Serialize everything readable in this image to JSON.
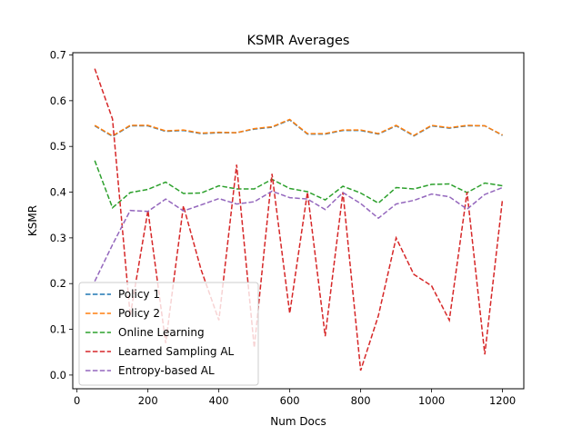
{
  "chart_data": {
    "type": "line",
    "title": "KSMR Averages",
    "xlabel": "Num Docs",
    "ylabel": "KSMR",
    "xlim": [
      -12,
      1260
    ],
    "ylim": [
      -0.03,
      0.705
    ],
    "xticks": [
      0,
      200,
      400,
      600,
      800,
      1000,
      1200
    ],
    "yticks": [
      0.0,
      0.1,
      0.2,
      0.3,
      0.4,
      0.5,
      0.6,
      0.7
    ],
    "grid": false,
    "legend_position": "lower-left",
    "x": [
      50,
      100,
      150,
      200,
      250,
      300,
      350,
      400,
      450,
      500,
      550,
      600,
      650,
      700,
      750,
      800,
      850,
      900,
      950,
      1000,
      1050,
      1100,
      1150,
      1200
    ],
    "series": [
      {
        "name": "Policy 1",
        "color": "#1f77b4",
        "values": [
          0.545,
          0.522,
          0.545,
          0.545,
          0.533,
          0.535,
          0.528,
          0.53,
          0.53,
          0.538,
          0.542,
          0.558,
          0.527,
          0.527,
          0.535,
          0.535,
          0.527,
          0.545,
          0.523,
          0.545,
          0.54,
          0.545,
          0.545,
          0.524
        ]
      },
      {
        "name": "Policy 2",
        "color": "#ff7f0e",
        "values": [
          0.546,
          0.523,
          0.546,
          0.546,
          0.534,
          0.536,
          0.529,
          0.531,
          0.53,
          0.539,
          0.543,
          0.559,
          0.528,
          0.528,
          0.536,
          0.536,
          0.528,
          0.546,
          0.524,
          0.546,
          0.541,
          0.546,
          0.545,
          0.525
        ]
      },
      {
        "name": "Online Learning",
        "color": "#2ca02c",
        "values": [
          0.469,
          0.366,
          0.399,
          0.406,
          0.422,
          0.397,
          0.398,
          0.414,
          0.407,
          0.407,
          0.428,
          0.408,
          0.401,
          0.383,
          0.413,
          0.398,
          0.376,
          0.41,
          0.407,
          0.417,
          0.418,
          0.399,
          0.42,
          0.414
        ]
      },
      {
        "name": "Learned Sampling AL",
        "color": "#d62728",
        "values": [
          0.67,
          0.56,
          0.13,
          0.36,
          0.07,
          0.37,
          0.23,
          0.12,
          0.46,
          0.06,
          0.44,
          0.135,
          0.4,
          0.085,
          0.4,
          0.01,
          0.13,
          0.3,
          0.22,
          0.195,
          0.12,
          0.4,
          0.045,
          0.385
        ]
      },
      {
        "name": "Entropy-based AL",
        "color": "#9467bd",
        "values": [
          0.205,
          0.285,
          0.36,
          0.358,
          0.385,
          0.359,
          0.372,
          0.386,
          0.374,
          0.379,
          0.402,
          0.388,
          0.385,
          0.362,
          0.399,
          0.375,
          0.343,
          0.374,
          0.382,
          0.396,
          0.39,
          0.363,
          0.395,
          0.41
        ]
      }
    ]
  }
}
